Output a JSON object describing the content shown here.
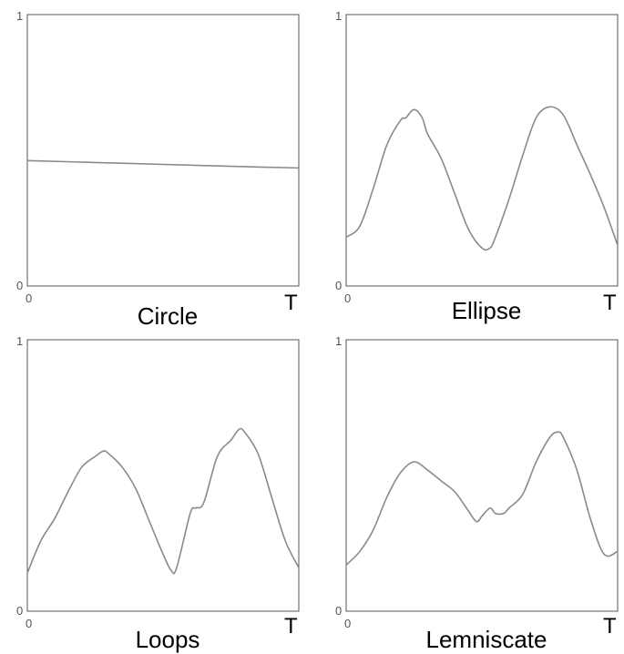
{
  "chart_data": [
    {
      "type": "line",
      "title": "Circle",
      "x_tick_labels": [
        "0",
        "T"
      ],
      "y_tick_labels": [
        "0",
        "1"
      ],
      "ylim": [
        0,
        1
      ],
      "x": [
        0,
        0.25,
        0.5,
        0.75,
        1.0
      ],
      "series": [
        {
          "values": [
            0.462,
            0.455,
            0.448,
            0.441,
            0.435
          ],
          "color": "#8a8a8a"
        }
      ]
    },
    {
      "type": "line",
      "title": "Ellipse",
      "x_tick_labels": [
        "0",
        "T"
      ],
      "y_tick_labels": [
        "0",
        "1"
      ],
      "ylim": [
        0,
        1
      ],
      "x": [
        0,
        0.05,
        0.1,
        0.15,
        0.2,
        0.22,
        0.25,
        0.28,
        0.3,
        0.35,
        0.4,
        0.45,
        0.5,
        0.53,
        0.55,
        0.6,
        0.65,
        0.7,
        0.75,
        0.8,
        0.85,
        0.9,
        0.95,
        1.0
      ],
      "series": [
        {
          "values": [
            0.18,
            0.22,
            0.36,
            0.52,
            0.61,
            0.62,
            0.65,
            0.62,
            0.56,
            0.47,
            0.34,
            0.21,
            0.14,
            0.14,
            0.18,
            0.32,
            0.48,
            0.62,
            0.66,
            0.63,
            0.52,
            0.41,
            0.29,
            0.15
          ],
          "color": "#8a8a8a"
        }
      ]
    },
    {
      "type": "line",
      "title": "Loops",
      "x_tick_labels": [
        "0",
        "T"
      ],
      "y_tick_labels": [
        "0",
        "1"
      ],
      "ylim": [
        0,
        1
      ],
      "x": [
        0,
        0.05,
        0.1,
        0.15,
        0.2,
        0.25,
        0.28,
        0.3,
        0.35,
        0.4,
        0.45,
        0.5,
        0.53,
        0.55,
        0.6,
        0.62,
        0.65,
        0.7,
        0.75,
        0.78,
        0.8,
        0.85,
        0.9,
        0.95,
        1.0
      ],
      "series": [
        {
          "values": [
            0.14,
            0.26,
            0.34,
            0.44,
            0.53,
            0.57,
            0.59,
            0.58,
            0.53,
            0.45,
            0.33,
            0.21,
            0.15,
            0.16,
            0.36,
            0.38,
            0.4,
            0.57,
            0.63,
            0.67,
            0.66,
            0.58,
            0.42,
            0.26,
            0.16
          ],
          "color": "#8a8a8a"
        }
      ]
    },
    {
      "type": "line",
      "title": "Lemniscate",
      "x_tick_labels": [
        "0",
        "T"
      ],
      "y_tick_labels": [
        "0",
        "1"
      ],
      "ylim": [
        0,
        1
      ],
      "x": [
        0,
        0.05,
        0.1,
        0.15,
        0.2,
        0.25,
        0.3,
        0.35,
        0.4,
        0.45,
        0.48,
        0.5,
        0.53,
        0.55,
        0.58,
        0.6,
        0.65,
        0.7,
        0.75,
        0.78,
        0.8,
        0.85,
        0.9,
        0.95,
        1.0
      ],
      "series": [
        {
          "values": [
            0.17,
            0.22,
            0.3,
            0.42,
            0.51,
            0.55,
            0.52,
            0.48,
            0.44,
            0.37,
            0.33,
            0.35,
            0.38,
            0.36,
            0.36,
            0.38,
            0.43,
            0.55,
            0.64,
            0.66,
            0.64,
            0.52,
            0.34,
            0.21,
            0.22
          ],
          "color": "#8a8a8a"
        }
      ]
    }
  ]
}
